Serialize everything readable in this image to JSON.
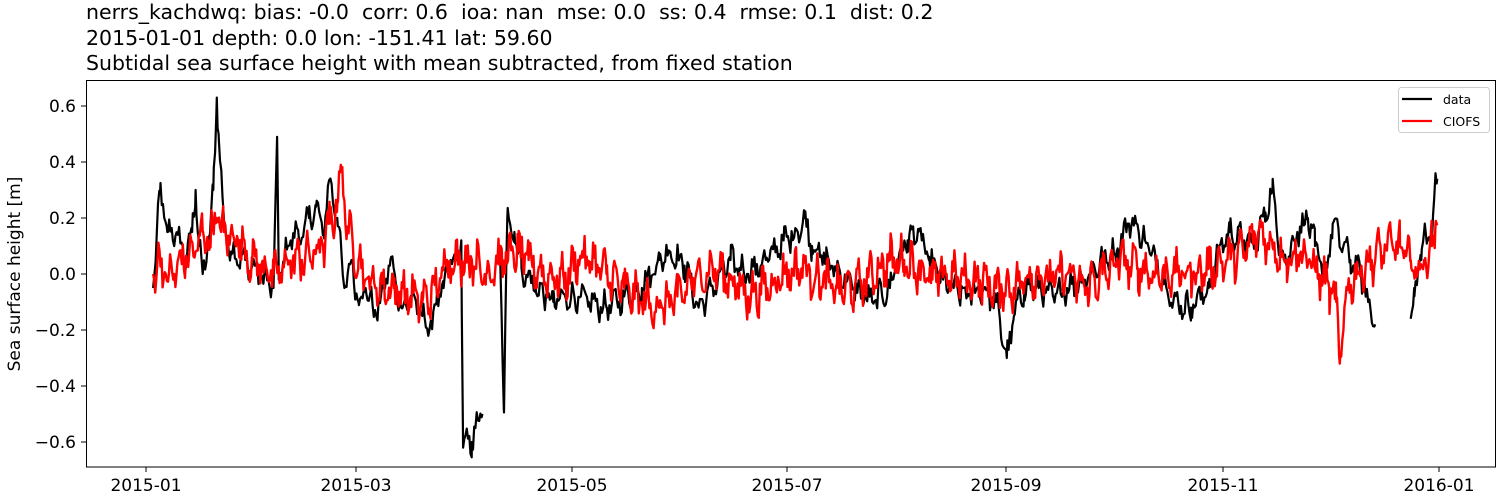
{
  "header": {
    "title_line1": "nerrs_kachdwq: bias: -0.0  corr: 0.6  ioa: nan  mse: 0.0  ss: 0.4  rmse: 0.1  dist: 0.2",
    "title_line2": "2015-01-01 depth: 0.0 lon: -151.41 lat: 59.60",
    "title_line3": "Subtidal sea surface height with mean subtracted, from fixed station"
  },
  "chart_data": {
    "type": "line",
    "title": "nerrs_kachdwq: bias: -0.0  corr: 0.6  ioa: nan  mse: 0.0  ss: 0.4  rmse: 0.1  dist: 0.2 / 2015-01-01 depth: 0.0 lon: -151.41 lat: 59.60 / Subtidal sea surface height with mean subtracted, from fixed station",
    "xlabel": "",
    "ylabel": "Sea surface height [m]",
    "ylim": [
      -0.69,
      0.69
    ],
    "xlim": [
      "2014-12-23",
      "2016-01-18"
    ],
    "grid": false,
    "legend_position": "upper right",
    "x_ticks": [
      "2015-01",
      "2015-03",
      "2015-05",
      "2015-07",
      "2015-09",
      "2015-11",
      "2016-01"
    ],
    "y_ticks": [
      0.6,
      0.4,
      0.2,
      0.0,
      -0.2,
      -0.4,
      -0.6
    ],
    "y_tick_labels": [
      "0.6",
      "0.4",
      "0.2",
      "0.0",
      "−0.2",
      "−0.4",
      "−0.6"
    ],
    "series": [
      {
        "name": "data",
        "color": "#000000",
        "keypoints_day_value": [
          [
            2,
            -0.05
          ],
          [
            4,
            0.3
          ],
          [
            6,
            0.15
          ],
          [
            9,
            0.14
          ],
          [
            11,
            0.05
          ],
          [
            13,
            0.15
          ],
          [
            14,
            0.3
          ],
          [
            15,
            0.1
          ],
          [
            16,
            0.0
          ],
          [
            18,
            0.14
          ],
          [
            19,
            0.3
          ],
          [
            20,
            0.63
          ],
          [
            20.5,
            0.5
          ],
          [
            22,
            0.18
          ],
          [
            24,
            0.08
          ],
          [
            28,
            0.05
          ],
          [
            32,
            0.0
          ],
          [
            36,
            -0.05
          ],
          [
            37,
            0.49
          ],
          [
            37.5,
            -0.02
          ],
          [
            40,
            0.1
          ],
          [
            42,
            0.15
          ],
          [
            44,
            0.13
          ],
          [
            46,
            0.2
          ],
          [
            48,
            0.24
          ],
          [
            50,
            0.15
          ],
          [
            52,
            0.34
          ],
          [
            54,
            0.2
          ],
          [
            56,
            -0.05
          ],
          [
            58,
            0.05
          ],
          [
            60,
            -0.1
          ],
          [
            62,
            -0.05
          ],
          [
            65,
            -0.15
          ],
          [
            67,
            -0.05
          ],
          [
            69,
            0.05
          ],
          [
            72,
            -0.12
          ],
          [
            75,
            -0.08
          ],
          [
            78,
            -0.15
          ],
          [
            80,
            -0.2
          ],
          [
            82,
            -0.1
          ],
          [
            84,
            -0.05
          ],
          [
            86,
            0.05
          ],
          [
            88,
            0.05
          ],
          [
            89,
            0.12
          ],
          [
            89.5,
            -0.62
          ],
          [
            92,
            -0.6
          ],
          [
            93,
            -0.55
          ],
          [
            95,
            -0.5
          ]
        ],
        "keypoints_day_value_segment2": [
          [
            100,
            0.05
          ],
          [
            101,
            -0.48
          ],
          [
            102,
            0.2
          ],
          [
            104,
            0.15
          ],
          [
            106,
            0.02
          ],
          [
            110,
            -0.05
          ],
          [
            115,
            -0.1
          ],
          [
            120,
            -0.08
          ],
          [
            125,
            -0.1
          ],
          [
            130,
            -0.12
          ],
          [
            135,
            -0.08
          ],
          [
            140,
            -0.05
          ],
          [
            145,
            0.05
          ],
          [
            148,
            0.08
          ],
          [
            152,
            0.03
          ],
          [
            156,
            -0.12
          ],
          [
            160,
            -0.05
          ],
          [
            165,
            0.05
          ],
          [
            170,
            0.0
          ],
          [
            175,
            0.05
          ],
          [
            180,
            0.12
          ],
          [
            184,
            0.15
          ],
          [
            186,
            0.2
          ],
          [
            188,
            0.1
          ],
          [
            192,
            0.05
          ],
          [
            196,
            0.0
          ],
          [
            200,
            -0.05
          ],
          [
            205,
            -0.1
          ],
          [
            210,
            -0.05
          ],
          [
            212,
            0.05
          ],
          [
            215,
            0.12
          ],
          [
            218,
            0.15
          ],
          [
            221,
            0.05
          ],
          [
            225,
            -0.02
          ],
          [
            228,
            -0.05
          ],
          [
            232,
            -0.08
          ],
          [
            236,
            -0.05
          ],
          [
            240,
            -0.1
          ],
          [
            243,
            -0.3
          ],
          [
            245,
            -0.15
          ],
          [
            248,
            -0.05
          ],
          [
            252,
            -0.05
          ],
          [
            256,
            -0.08
          ],
          [
            260,
            -0.05
          ],
          [
            265,
            -0.02
          ],
          [
            270,
            0.05
          ],
          [
            274,
            0.08
          ],
          [
            277,
            0.18
          ],
          [
            279,
            0.18
          ],
          [
            282,
            0.12
          ],
          [
            285,
            0.05
          ],
          [
            290,
            -0.1
          ],
          [
            295,
            -0.12
          ],
          [
            300,
            -0.05
          ],
          [
            303,
            0.1
          ],
          [
            306,
            0.15
          ],
          [
            310,
            0.12
          ],
          [
            313,
            0.1
          ],
          [
            316,
            0.22
          ],
          [
            318,
            0.3
          ],
          [
            320,
            0.1
          ],
          [
            322,
            0.05
          ],
          [
            325,
            0.15
          ],
          [
            328,
            0.2
          ],
          [
            330,
            0.1
          ],
          [
            333,
            0.0
          ],
          [
            335,
            0.18
          ],
          [
            338,
            0.1
          ],
          [
            340,
            0.05
          ],
          [
            343,
            0.0
          ],
          [
            345,
            -0.1
          ],
          [
            347,
            -0.18
          ]
        ],
        "keypoints_day_value_segment3": [
          [
            357,
            -0.16
          ],
          [
            358,
            -0.05
          ],
          [
            360,
            0.05
          ],
          [
            361,
            0.18
          ],
          [
            362,
            0.12
          ],
          [
            363,
            0.1
          ],
          [
            364,
            0.36
          ],
          [
            364.5,
            0.34
          ]
        ]
      },
      {
        "name": "CIOFS",
        "color": "#ff0000",
        "keypoints_day_value": [
          [
            2,
            0.0
          ],
          [
            4,
            0.05
          ],
          [
            6,
            -0.02
          ],
          [
            8,
            0.0
          ],
          [
            10,
            0.05
          ],
          [
            14,
            0.08
          ],
          [
            16,
            0.15
          ],
          [
            18,
            0.12
          ],
          [
            20,
            0.2
          ],
          [
            22,
            0.15
          ],
          [
            26,
            0.12
          ],
          [
            30,
            0.05
          ],
          [
            34,
            0.02
          ],
          [
            36,
            0.0
          ],
          [
            38,
            0.0
          ],
          [
            40,
            0.05
          ],
          [
            44,
            0.05
          ],
          [
            48,
            0.08
          ],
          [
            50,
            0.1
          ],
          [
            52,
            0.18
          ],
          [
            54,
            0.25
          ],
          [
            55,
            0.39
          ],
          [
            57,
            0.15
          ],
          [
            60,
            0.05
          ],
          [
            62,
            -0.02
          ],
          [
            65,
            -0.05
          ],
          [
            70,
            -0.05
          ],
          [
            75,
            -0.08
          ],
          [
            78,
            -0.1
          ],
          [
            82,
            -0.05
          ],
          [
            85,
            0.05
          ],
          [
            88,
            0.05
          ],
          [
            92,
            0.05
          ],
          [
            96,
            0.0
          ],
          [
            100,
            0.05
          ],
          [
            105,
            0.08
          ],
          [
            108,
            0.05
          ],
          [
            112,
            0.0
          ],
          [
            118,
            -0.02
          ],
          [
            122,
            0.05
          ],
          [
            126,
            0.05
          ],
          [
            130,
            0.0
          ],
          [
            135,
            -0.05
          ],
          [
            140,
            -0.1
          ],
          [
            145,
            -0.12
          ],
          [
            150,
            -0.08
          ],
          [
            155,
            -0.02
          ],
          [
            160,
            0.02
          ],
          [
            165,
            -0.02
          ],
          [
            170,
            -0.08
          ],
          [
            175,
            -0.05
          ],
          [
            180,
            0.0
          ],
          [
            185,
            0.02
          ],
          [
            190,
            -0.02
          ],
          [
            195,
            -0.05
          ],
          [
            200,
            -0.05
          ],
          [
            205,
            0.0
          ],
          [
            210,
            0.05
          ],
          [
            214,
            0.05
          ],
          [
            218,
            0.02
          ],
          [
            222,
            -0.02
          ],
          [
            226,
            0.0
          ],
          [
            230,
            -0.02
          ],
          [
            235,
            -0.02
          ],
          [
            240,
            -0.05
          ],
          [
            245,
            -0.05
          ],
          [
            250,
            0.0
          ],
          [
            255,
            -0.02
          ],
          [
            260,
            0.0
          ],
          [
            265,
            -0.05
          ],
          [
            270,
            0.0
          ],
          [
            275,
            0.05
          ],
          [
            280,
            0.02
          ],
          [
            285,
            0.0
          ],
          [
            290,
            0.0
          ],
          [
            295,
            0.0
          ],
          [
            300,
            0.02
          ],
          [
            305,
            0.05
          ],
          [
            310,
            0.08
          ],
          [
            314,
            0.15
          ],
          [
            318,
            0.1
          ],
          [
            322,
            0.05
          ],
          [
            326,
            0.08
          ],
          [
            330,
            0.02
          ],
          [
            334,
            -0.05
          ],
          [
            336,
            -0.1
          ],
          [
            337,
            -0.32
          ],
          [
            339,
            -0.05
          ],
          [
            342,
            0.0
          ],
          [
            346,
            0.05
          ],
          [
            350,
            0.1
          ],
          [
            354,
            0.1
          ],
          [
            357,
            0.05
          ],
          [
            359,
            0.0
          ],
          [
            361,
            0.05
          ],
          [
            363,
            0.1
          ],
          [
            364,
            0.18
          ],
          [
            364.5,
            0.18
          ]
        ]
      }
    ]
  },
  "axes": {
    "ylabel": "Sea surface height [m]",
    "x_tick_labels": [
      "2015-01",
      "2015-03",
      "2015-05",
      "2015-07",
      "2015-09",
      "2015-11",
      "2016-01"
    ],
    "y_tick_labels": [
      "0.6",
      "0.4",
      "0.2",
      "0.0",
      "−0.2",
      "−0.4",
      "−0.6"
    ]
  },
  "legend": {
    "items": [
      {
        "label": "data",
        "color": "#000000"
      },
      {
        "label": "CIOFS",
        "color": "#ff0000"
      }
    ]
  }
}
